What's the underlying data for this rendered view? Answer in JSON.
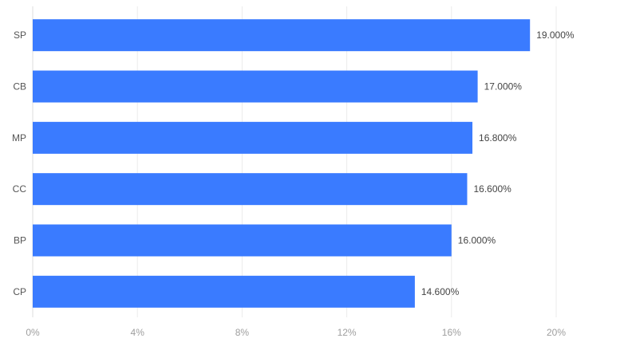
{
  "chart_data": {
    "type": "bar",
    "orientation": "horizontal",
    "categories": [
      "SP",
      "CB",
      "MP",
      "CC",
      "BP",
      "CP"
    ],
    "values": [
      19.0,
      17.0,
      16.8,
      16.6,
      16.0,
      14.6
    ],
    "value_labels": [
      "19.000%",
      "17.000%",
      "16.800%",
      "16.600%",
      "16.000%",
      "14.600%"
    ],
    "x_ticks": [
      0,
      4,
      8,
      12,
      16,
      20
    ],
    "x_tick_labels": [
      "0%",
      "4%",
      "8%",
      "12%",
      "16%",
      "20%"
    ],
    "xlim": [
      0,
      20
    ],
    "unit": "%",
    "grid": true,
    "legend": "none",
    "title": "",
    "xlabel": "",
    "ylabel": "",
    "colors": {
      "bar": "#3a7bff",
      "axis_text": "#9e9e9e",
      "category_text": "#555555",
      "value_text": "#444444",
      "gridline": "#ebebeb"
    }
  }
}
